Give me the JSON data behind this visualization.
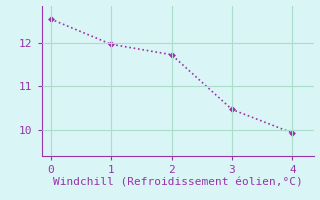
{
  "x": [
    0,
    1,
    2,
    3,
    4
  ],
  "y": [
    12.55,
    11.97,
    11.73,
    10.47,
    9.93
  ],
  "line_color": "#9933aa",
  "marker": "D",
  "marker_size": 3,
  "background_color": "#d9f5f5",
  "grid_color": "#aaddcc",
  "spine_color": "#9933aa",
  "xlabel": "Windchill (Refroidissement éolien,°C)",
  "xlabel_color": "#9933aa",
  "xlabel_fontsize": 8,
  "ytick_values": [
    10,
    11,
    12
  ],
  "xtick_values": [
    0,
    1,
    2,
    3,
    4
  ],
  "xlim": [
    -0.15,
    4.35
  ],
  "ylim": [
    9.4,
    12.85
  ],
  "tick_color": "#9933aa",
  "tick_fontsize": 8,
  "font_family": "monospace"
}
